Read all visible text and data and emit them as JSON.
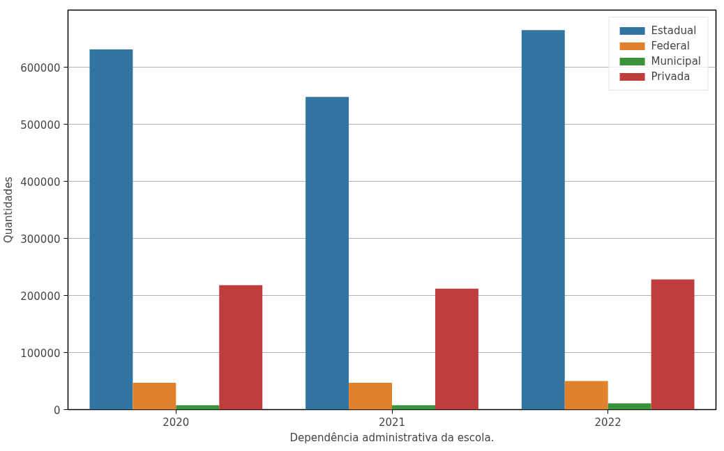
{
  "chart_data": {
    "type": "bar",
    "xlabel": "Dependência administrativa da escola.",
    "ylabel": "Quantidades",
    "categories": [
      "2020",
      "2021",
      "2022"
    ],
    "series": [
      {
        "name": "Estadual",
        "color": "#3274a1",
        "values": [
          631000,
          548000,
          665000
        ]
      },
      {
        "name": "Federal",
        "color": "#e1812c",
        "values": [
          47000,
          47000,
          50000
        ]
      },
      {
        "name": "Municipal",
        "color": "#3a923a",
        "values": [
          7500,
          7500,
          11000
        ]
      },
      {
        "name": "Privada",
        "color": "#c03d3e",
        "values": [
          218000,
          212000,
          228000
        ]
      }
    ],
    "ylim": [
      0,
      700000
    ],
    "yticks": [
      0,
      100000,
      200000,
      300000,
      400000,
      500000,
      600000
    ],
    "grid": "y",
    "legend": "top right"
  }
}
